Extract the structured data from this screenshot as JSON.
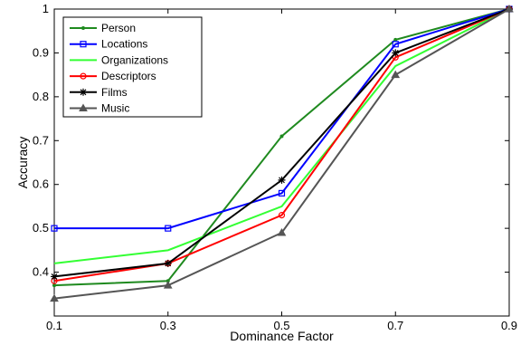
{
  "chart_data": {
    "type": "line",
    "xlabel": "Dominance Factor",
    "ylabel": "Accuracy",
    "x": [
      0.1,
      0.3,
      0.5,
      0.7,
      0.9
    ],
    "x_tick_labels": [
      "0.1",
      "0.3",
      "0.5",
      "0.7",
      "0.9"
    ],
    "y_ticks": [
      0.4,
      0.5,
      0.6,
      0.7,
      0.8,
      0.9,
      1
    ],
    "y_tick_labels": [
      "0.4",
      "0.5",
      "0.6",
      "0.7",
      "0.8",
      "0.9",
      "1"
    ],
    "xlim": [
      0.1,
      0.9
    ],
    "ylim": [
      0.3,
      1.0
    ],
    "grid": false,
    "legend_position": "top-left",
    "series": [
      {
        "name": "Person",
        "color": "#1f8a1f",
        "marker": "point",
        "values": [
          0.37,
          0.38,
          0.71,
          0.93,
          1.0
        ]
      },
      {
        "name": "Locations",
        "color": "#0000ff",
        "marker": "square",
        "values": [
          0.5,
          0.5,
          0.58,
          0.92,
          1.0
        ]
      },
      {
        "name": "Organizations",
        "color": "#33ff33",
        "marker": "none",
        "values": [
          0.42,
          0.45,
          0.55,
          0.87,
          1.0
        ]
      },
      {
        "name": "Descriptors",
        "color": "#ff0000",
        "marker": "circle",
        "values": [
          0.38,
          0.42,
          0.53,
          0.89,
          1.0
        ]
      },
      {
        "name": "Films",
        "color": "#000000",
        "marker": "star",
        "values": [
          0.39,
          0.42,
          0.61,
          0.9,
          1.0
        ]
      },
      {
        "name": "Music",
        "color": "#555555",
        "marker": "triangle",
        "values": [
          0.34,
          0.37,
          0.49,
          0.85,
          1.0
        ]
      }
    ]
  }
}
